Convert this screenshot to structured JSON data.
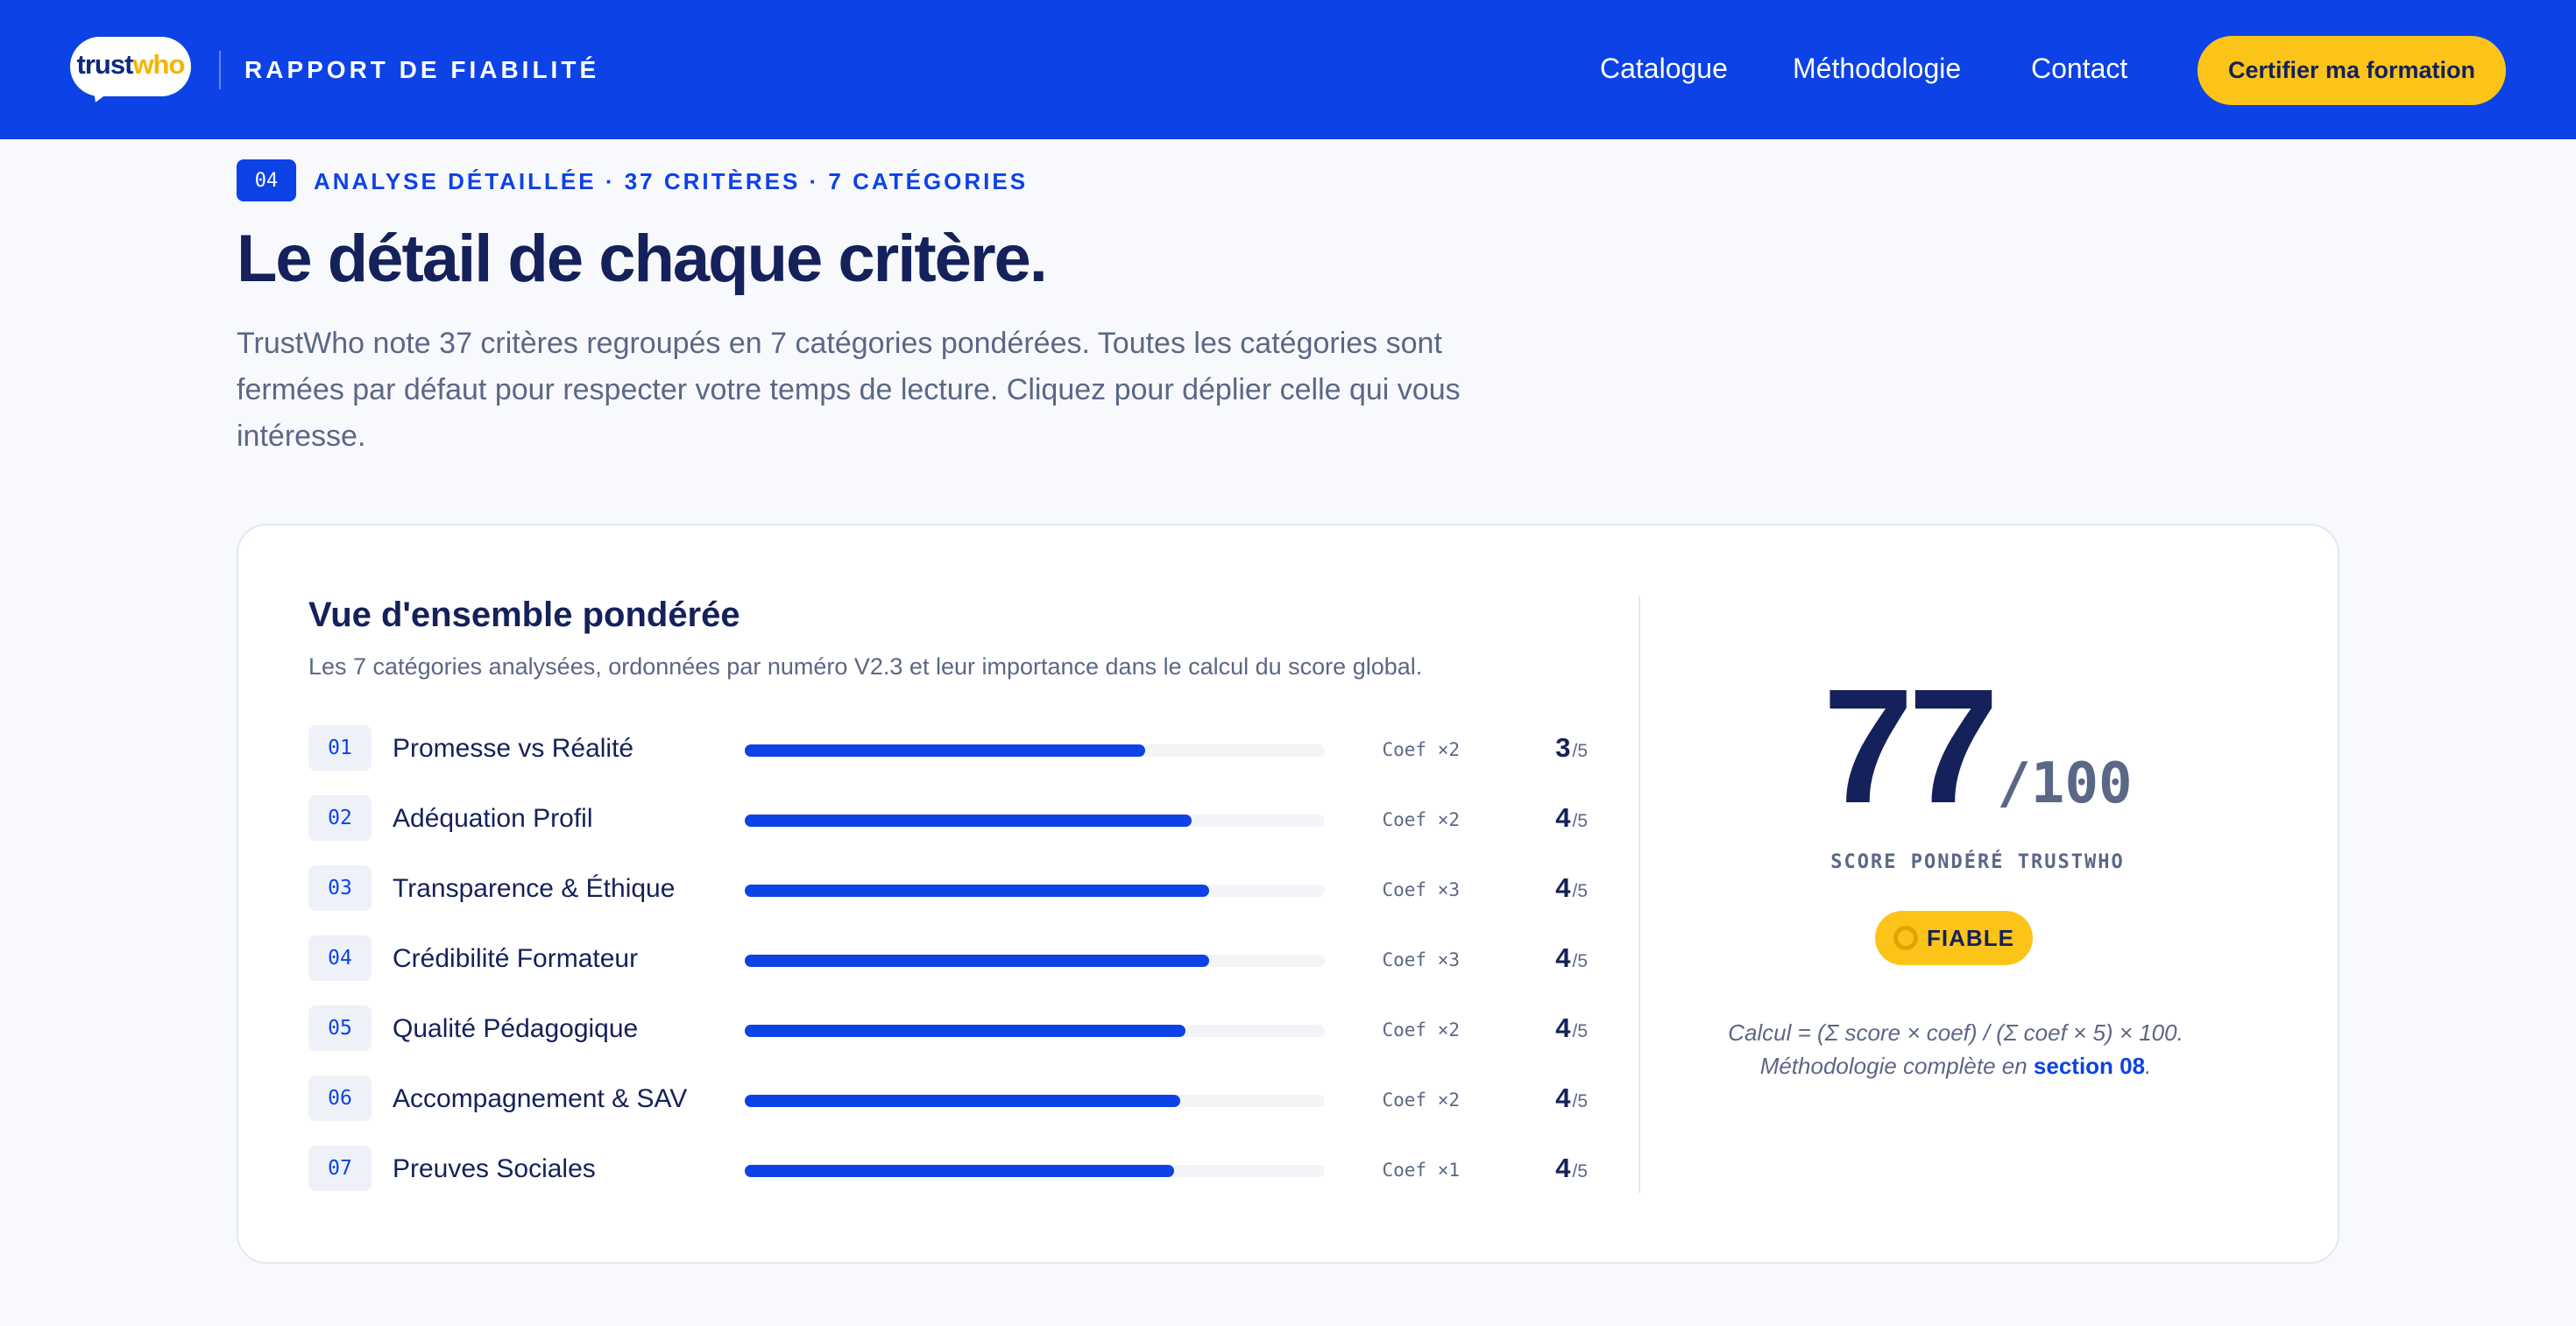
{
  "header": {
    "logo_trust": "trust",
    "logo_who": "who",
    "report_label": "RAPPORT DE FIABILITÉ",
    "nav": [
      "Catalogue",
      "Méthodologie",
      "Contact"
    ],
    "cta_label": "Certifier ma formation"
  },
  "section": {
    "number": "04",
    "eyebrow": "ANALYSE DÉTAILLÉE · 37 CRITÈRES · 7 CATÉGORIES",
    "title": "Le détail de chaque critère.",
    "intro": "TrustWho note 37 critères regroupés en 7 catégories pondérées. Toutes les catégories sont fermées par défaut pour respecter votre temps de lecture. Cliquez pour déplier celle qui vous intéresse."
  },
  "overview": {
    "title": "Vue d'ensemble pondérée",
    "subtitle": "Les 7 catégories analysées, ordonnées par numéro V2.3 et leur importance dans le calcul du score global.",
    "score_max_suffix": "/5",
    "categories": [
      {
        "num": "01",
        "label": "Promesse vs Réalité",
        "progress": 0.69,
        "coef": "Coef ×2",
        "score": "3"
      },
      {
        "num": "02",
        "label": "Adéquation Profil",
        "progress": 0.77,
        "coef": "Coef ×2",
        "score": "4"
      },
      {
        "num": "03",
        "label": "Transparence & Éthique",
        "progress": 0.8,
        "coef": "Coef ×3",
        "score": "4"
      },
      {
        "num": "04",
        "label": "Crédibilité Formateur",
        "progress": 0.8,
        "coef": "Coef ×3",
        "score": "4"
      },
      {
        "num": "05",
        "label": "Qualité Pédagogique",
        "progress": 0.76,
        "coef": "Coef ×2",
        "score": "4"
      },
      {
        "num": "06",
        "label": "Accompagnement & SAV",
        "progress": 0.75,
        "coef": "Coef ×2",
        "score": "4"
      },
      {
        "num": "07",
        "label": "Preuves Sociales",
        "progress": 0.74,
        "coef": "Coef ×1",
        "score": "4"
      }
    ]
  },
  "global_score": {
    "value": "77",
    "max": "/100",
    "caption": "SCORE PONDÉRÉ TRUSTWHO",
    "badge": "FIABLE",
    "formula": "Calcul = (Σ score × coef) / (Σ coef × 5) × 100. Méthodologie complète en",
    "formula_link": "section 08",
    "formula_end": "."
  },
  "colors": {
    "brand_blue": "#0c42e6",
    "accent_yellow": "#fcc419",
    "navy": "#14215a"
  }
}
